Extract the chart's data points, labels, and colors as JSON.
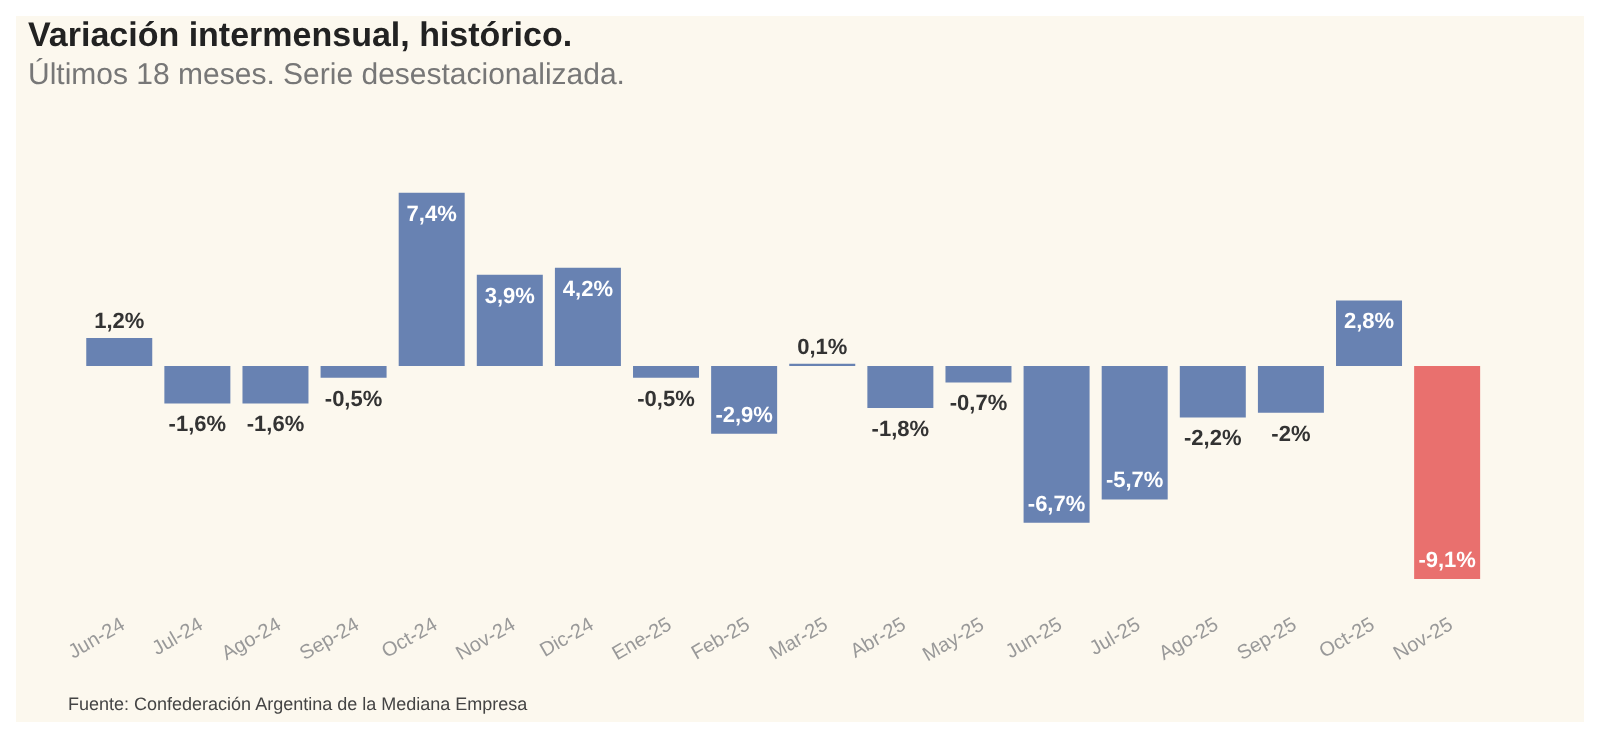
{
  "chart_data": {
    "type": "bar",
    "title": "Variación intermensual, histórico.",
    "subtitle": "Últimos 18 meses. Serie desestacionalizada.",
    "categories": [
      "Jun-24",
      "Jul-24",
      "Ago-24",
      "Sep-24",
      "Oct-24",
      "Nov-24",
      "Dic-24",
      "Ene-25",
      "Feb-25",
      "Mar-25",
      "Abr-25",
      "May-25",
      "Jun-25",
      "Jul-25",
      "Ago-25",
      "Sep-25",
      "Oct-25",
      "Nov-25"
    ],
    "values": [
      1.2,
      -1.6,
      -1.6,
      -0.5,
      7.4,
      3.9,
      4.2,
      -0.5,
      -2.9,
      0.1,
      -1.8,
      -0.7,
      -6.7,
      -5.7,
      -2.2,
      -2,
      2.8,
      -9.1
    ],
    "value_labels": [
      "1,2%",
      "-1,6%",
      "-1,6%",
      "-0,5%",
      "7,4%",
      "3,9%",
      "4,2%",
      "-0,5%",
      "-2,9%",
      "0,1%",
      "-1,8%",
      "-0,7%",
      "-6,7%",
      "-5,7%",
      "-2,2%",
      "-2%",
      "2,8%",
      "-9,1%"
    ],
    "colors": [
      "#6882b2",
      "#6882b2",
      "#6882b2",
      "#6882b2",
      "#6882b2",
      "#6882b2",
      "#6882b2",
      "#6882b2",
      "#6882b2",
      "#6882b2",
      "#6882b2",
      "#6882b2",
      "#6882b2",
      "#6882b2",
      "#6882b2",
      "#6882b2",
      "#6882b2",
      "#e9706e"
    ],
    "grid": false,
    "legend": false,
    "annotations": [
      "Fuente: Confederación Argentina de la Mediana Empresa"
    ]
  }
}
